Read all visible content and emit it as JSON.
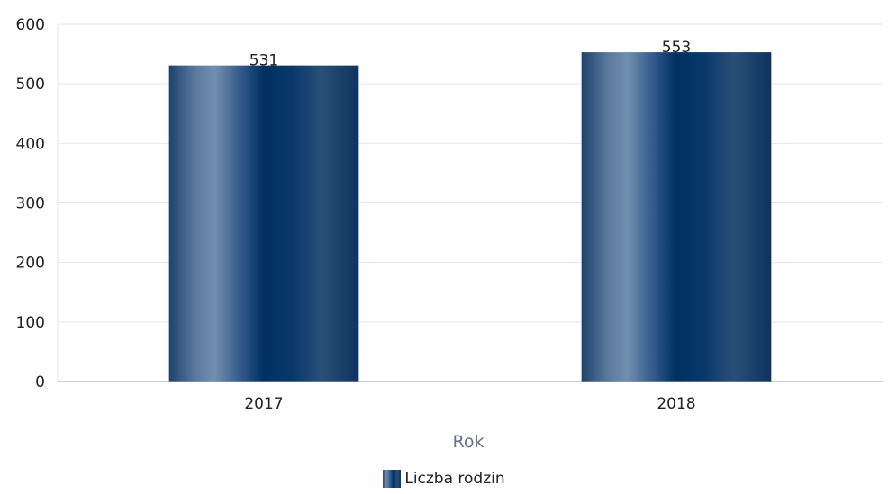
{
  "chart_data": {
    "type": "bar",
    "categories": [
      "2017",
      "2018"
    ],
    "series": [
      {
        "name": "Liczba rodzin",
        "values": [
          531,
          553
        ]
      }
    ],
    "xlabel": "Rok",
    "ylabel": "",
    "ylim": [
      0,
      600
    ],
    "yticks": [
      0,
      100,
      200,
      300,
      400,
      500,
      600
    ],
    "grid": true,
    "legend": "bottom-center",
    "data_labels": true,
    "colors": {
      "bar_dark": "#002f63",
      "bar_light": "#6d8bab",
      "grid": "#e6e6e6",
      "axis": "#9aa0b4",
      "axis_title": "#6b6f8c"
    }
  }
}
